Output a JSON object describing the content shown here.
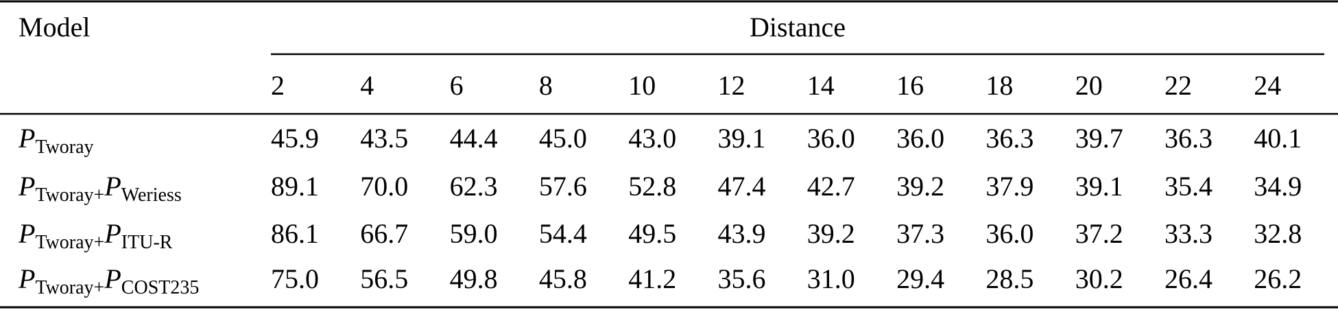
{
  "table": {
    "header": {
      "model": "Model",
      "group": "Distance",
      "columns": [
        "2",
        "4",
        "6",
        "8",
        "10",
        "12",
        "14",
        "16",
        "18",
        "20",
        "22",
        "24"
      ]
    },
    "rows": [
      {
        "model": [
          {
            "main": "P",
            "sub": "Tworay"
          }
        ],
        "values": [
          "45.9",
          "43.5",
          "44.4",
          "45.0",
          "43.0",
          "39.1",
          "36.0",
          "36.0",
          "36.3",
          "39.7",
          "36.3",
          "40.1"
        ]
      },
      {
        "model": [
          {
            "main": "P",
            "sub": "Tworay+"
          },
          {
            "main": "P",
            "sub": "Weriess"
          }
        ],
        "values": [
          "89.1",
          "70.0",
          "62.3",
          "57.6",
          "52.8",
          "47.4",
          "42.7",
          "39.2",
          "37.9",
          "39.1",
          "35.4",
          "34.9"
        ]
      },
      {
        "model": [
          {
            "main": "P",
            "sub": "Tworay+"
          },
          {
            "main": "P",
            "sub": "ITU-R"
          }
        ],
        "values": [
          "86.1",
          "66.7",
          "59.0",
          "54.4",
          "49.5",
          "43.9",
          "39.2",
          "37.3",
          "36.0",
          "37.2",
          "33.3",
          "32.8"
        ]
      },
      {
        "model": [
          {
            "main": "P",
            "sub": "Tworay+"
          },
          {
            "main": "P",
            "sub": "COST235"
          }
        ],
        "values": [
          "75.0",
          "56.5",
          "49.8",
          "45.8",
          "41.2",
          "35.6",
          "31.0",
          "29.4",
          "28.5",
          "30.2",
          "26.4",
          "26.2"
        ]
      }
    ]
  }
}
